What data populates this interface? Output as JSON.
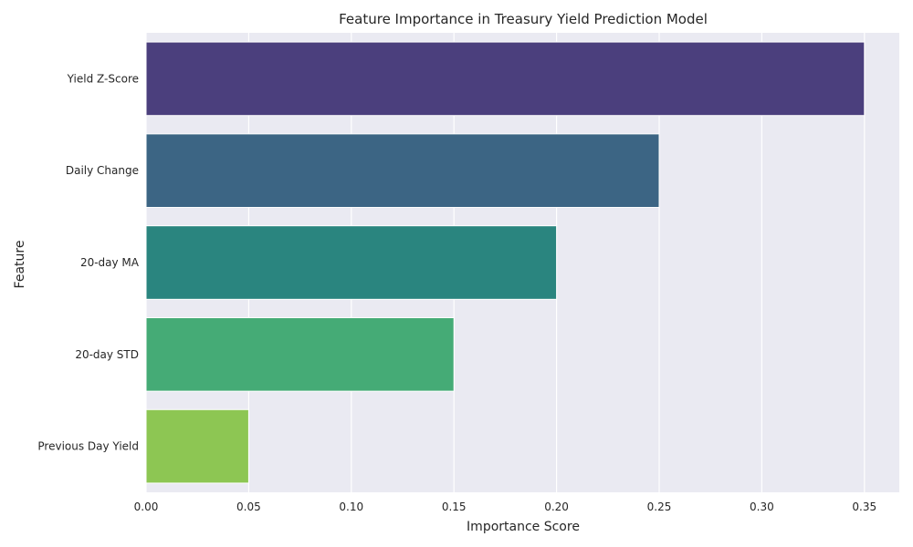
{
  "chart_data": {
    "type": "bar",
    "orientation": "horizontal",
    "title": "Feature Importance in Treasury Yield Prediction Model",
    "xlabel": "Importance Score",
    "ylabel": "Feature",
    "categories": [
      "Yield Z-Score",
      "Daily Change",
      "20-day MA",
      "20-day STD",
      "Previous Day Yield"
    ],
    "values": [
      0.35,
      0.25,
      0.2,
      0.15,
      0.05
    ],
    "xlim": [
      0,
      0.367
    ],
    "xticks": [
      0.0,
      0.05,
      0.1,
      0.15,
      0.2,
      0.25,
      0.3,
      0.35
    ],
    "xtick_labels": [
      "0.00",
      "0.05",
      "0.10",
      "0.15",
      "0.20",
      "0.25",
      "0.30",
      "0.35"
    ],
    "grid": true,
    "colors": [
      "#4b3f7d",
      "#3c6584",
      "#2a857f",
      "#45ab76",
      "#8dc653"
    ],
    "background": "#eaeaf2"
  }
}
